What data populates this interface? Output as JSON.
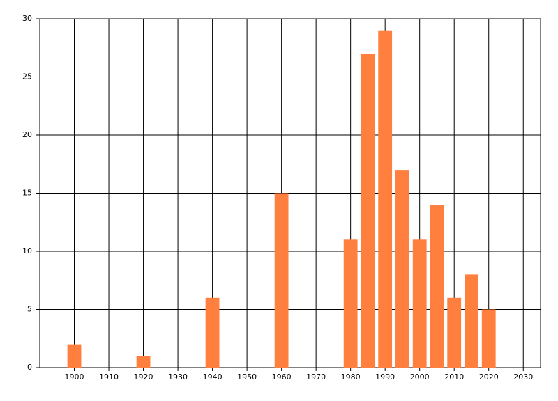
{
  "chart_data": {
    "type": "bar",
    "x": [
      1900,
      1920,
      1940,
      1960,
      1980,
      1985,
      1990,
      1995,
      2000,
      2005,
      2010,
      2015,
      2020
    ],
    "values": [
      2,
      1,
      6,
      15,
      11,
      27,
      29,
      17,
      11,
      14,
      6,
      8,
      5
    ],
    "color": "#ff7f3f",
    "xlim": [
      1890,
      2035
    ],
    "xticks": [
      1900,
      1910,
      1920,
      1930,
      1940,
      1950,
      1960,
      1970,
      1980,
      1990,
      2000,
      2010,
      2020,
      2030
    ],
    "ylim": [
      0,
      30
    ],
    "yticks": [
      0,
      5,
      10,
      15,
      20,
      25,
      30
    ],
    "grid": true
  }
}
